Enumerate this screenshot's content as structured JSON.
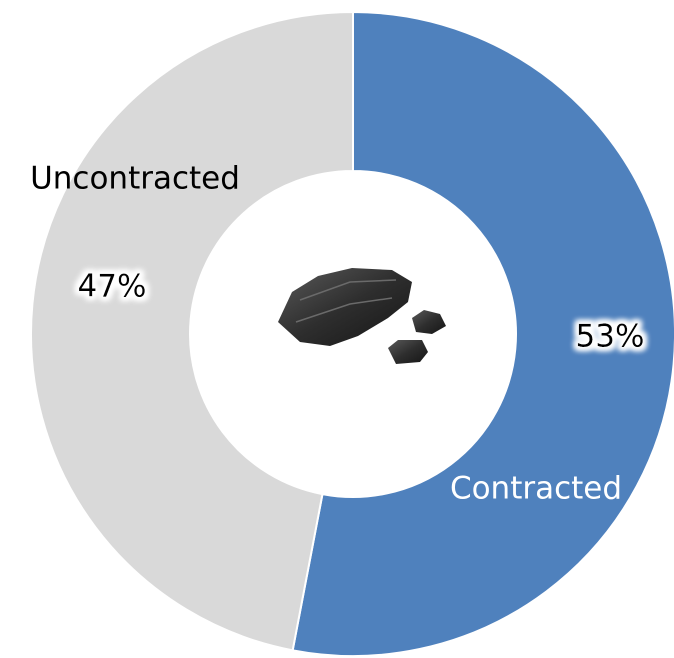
{
  "chart_data": {
    "type": "donut",
    "categories": [
      "Contracted",
      "Uncontracted"
    ],
    "values": [
      53,
      47
    ],
    "value_labels": [
      "53%",
      "47%"
    ],
    "colors": [
      "#4f81bd",
      "#d9d9d9"
    ]
  }
}
